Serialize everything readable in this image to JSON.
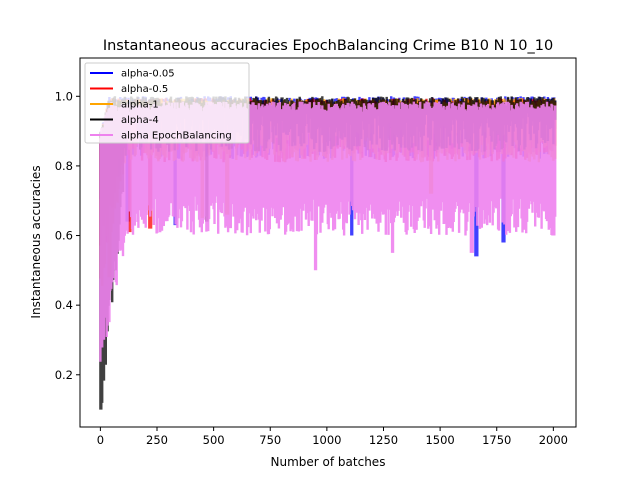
{
  "chart_data": {
    "type": "line",
    "title": "Instantaneous accuracies EpochBalancing Crime B10 N 10_10",
    "xlabel": "Number of batches",
    "ylabel": "Instantaneous accuracies",
    "xlim": [
      -90,
      2100
    ],
    "ylim": [
      0.05,
      1.11
    ],
    "xticks": [
      0,
      250,
      500,
      750,
      1000,
      1250,
      1500,
      1750,
      2000
    ],
    "yticks": [
      0.2,
      0.4,
      0.6,
      0.8,
      1.0
    ],
    "legend_position": "top-left",
    "grid": false,
    "n_batches": 2010,
    "series": [
      {
        "name": "alpha-0.05",
        "color": "#0000ff",
        "band": {
          "start": 0.68,
          "end_low": 0.88,
          "end_high": 1.0,
          "dips": [
            [
              1110,
              0.6
            ],
            [
              1660,
              0.54
            ],
            [
              1780,
              0.58
            ],
            [
              120,
              0.64
            ],
            [
              330,
              0.63
            ]
          ]
        }
      },
      {
        "name": "alpha-0.5",
        "color": "#ff0000",
        "band": {
          "start": 0.62,
          "end_low": 0.87,
          "end_high": 0.995,
          "dips": [
            [
              30,
              0.58
            ],
            [
              130,
              0.61
            ],
            [
              220,
              0.62
            ],
            [
              1890,
              0.93
            ]
          ]
        }
      },
      {
        "name": "alpha-1",
        "color": "#ffa500",
        "band": {
          "start": 0.48,
          "end_low": 0.87,
          "end_high": 0.995,
          "dips": [
            [
              40,
              0.48
            ],
            [
              450,
              0.65
            ],
            [
              560,
              0.66
            ],
            [
              1460,
              0.72
            ]
          ]
        }
      },
      {
        "name": "alpha-4",
        "color": "#000000",
        "band": {
          "start": 0.1,
          "end_low": 0.9,
          "end_high": 1.0,
          "dips": [
            [
              0,
              0.1
            ],
            [
              6,
              0.29
            ],
            [
              470,
              0.64
            ],
            [
              1800,
              0.93
            ],
            [
              1900,
              0.93
            ]
          ]
        }
      },
      {
        "name": "alpha EpochBalancing",
        "color": "#ee82ee",
        "band": {
          "start": 0.27,
          "end_low": 0.66,
          "end_high": 0.985,
          "dips": [
            [
              950,
              0.5
            ],
            [
              1290,
              0.55
            ],
            [
              1640,
              0.55
            ],
            [
              2000,
              0.6
            ]
          ]
        }
      }
    ]
  }
}
